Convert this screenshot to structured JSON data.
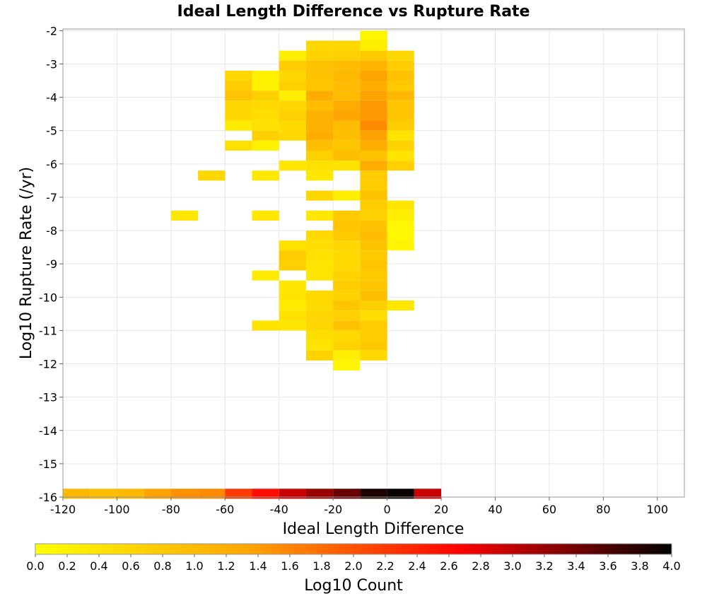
{
  "chart_data": {
    "type": "heatmap",
    "title": "Ideal Length Difference vs Rupture Rate",
    "xlabel": "Ideal Length Difference",
    "ylabel": "Log10 Rupture Rate (/yr)",
    "colorbar_label": "Log10 Count",
    "xlim": [
      -120,
      110
    ],
    "ylim": [
      -16,
      -1.95
    ],
    "x_ticks": [
      "-120",
      "-100",
      "-80",
      "-60",
      "-40",
      "-20",
      "0",
      "20",
      "40",
      "60",
      "80",
      "100"
    ],
    "y_ticks": [
      "-2",
      "-3",
      "-4",
      "-5",
      "-6",
      "-7",
      "-8",
      "-9",
      "-10",
      "-11",
      "-12",
      "-13",
      "-14",
      "-15",
      "-16"
    ],
    "colorbar_ticks": [
      "0.0",
      "0.2",
      "0.4",
      "0.6",
      "0.8",
      "1.0",
      "1.2",
      "1.4",
      "1.6",
      "1.8",
      "2.0",
      "2.2",
      "2.4",
      "2.6",
      "2.8",
      "3.0",
      "3.2",
      "3.4",
      "3.6",
      "3.8",
      "4.0"
    ],
    "colorbar_range": [
      0,
      4
    ],
    "grid": true,
    "colorscale": [
      "#ffff00",
      "#ffa500",
      "#ff0000",
      "#000000"
    ],
    "cell_width": 10,
    "cell_height": 0.3,
    "cells": [
      [
        -10,
        -2.15,
        0.15
      ],
      [
        -20,
        -2.45,
        0.6
      ],
      [
        -30,
        -2.45,
        0.6
      ],
      [
        -10,
        -2.45,
        0.25
      ],
      [
        -40,
        -2.75,
        0.25
      ],
      [
        -30,
        -2.75,
        0.65
      ],
      [
        -20,
        -2.75,
        0.7
      ],
      [
        -10,
        -2.75,
        0.8
      ],
      [
        0,
        -2.75,
        0.6
      ],
      [
        -40,
        -3.05,
        0.75
      ],
      [
        -30,
        -3.05,
        0.9
      ],
      [
        -20,
        -3.05,
        1.0
      ],
      [
        -10,
        -3.05,
        1.1
      ],
      [
        0,
        -3.05,
        0.75
      ],
      [
        -60,
        -3.35,
        0.6
      ],
      [
        -50,
        -3.35,
        0.2
      ],
      [
        -40,
        -3.35,
        0.6
      ],
      [
        -30,
        -3.35,
        0.9
      ],
      [
        -20,
        -3.35,
        1.05
      ],
      [
        -10,
        -3.35,
        1.35
      ],
      [
        0,
        -3.35,
        0.9
      ],
      [
        -60,
        -3.65,
        0.75
      ],
      [
        -50,
        -3.65,
        0.2
      ],
      [
        -40,
        -3.65,
        0.7
      ],
      [
        -30,
        -3.65,
        0.85
      ],
      [
        -20,
        -3.65,
        1.0
      ],
      [
        -10,
        -3.65,
        1.2
      ],
      [
        0,
        -3.65,
        0.8
      ],
      [
        -60,
        -3.95,
        0.9
      ],
      [
        -50,
        -3.95,
        0.7
      ],
      [
        -40,
        -3.95,
        0.25
      ],
      [
        -30,
        -3.95,
        1.2
      ],
      [
        -20,
        -3.95,
        1.0
      ],
      [
        -10,
        -3.95,
        1.35
      ],
      [
        0,
        -3.95,
        1.05
      ],
      [
        -60,
        -4.25,
        0.6
      ],
      [
        -50,
        -4.25,
        0.55
      ],
      [
        -40,
        -4.25,
        0.6
      ],
      [
        -30,
        -4.25,
        1.0
      ],
      [
        -20,
        -4.25,
        1.25
      ],
      [
        -10,
        -4.25,
        1.45
      ],
      [
        0,
        -4.25,
        0.85
      ],
      [
        -60,
        -4.55,
        0.6
      ],
      [
        -50,
        -4.55,
        0.5
      ],
      [
        -40,
        -4.55,
        0.7
      ],
      [
        -30,
        -4.55,
        1.15
      ],
      [
        -20,
        -4.55,
        1.3
      ],
      [
        -10,
        -4.55,
        1.45
      ],
      [
        0,
        -4.55,
        0.85
      ],
      [
        -60,
        -4.85,
        0.3
      ],
      [
        -50,
        -4.85,
        0.45
      ],
      [
        -40,
        -4.85,
        0.55
      ],
      [
        -30,
        -4.85,
        1.15
      ],
      [
        -20,
        -4.85,
        1.0
      ],
      [
        -10,
        -4.85,
        1.55
      ],
      [
        0,
        -4.85,
        0.75
      ],
      [
        -50,
        -5.15,
        0.7
      ],
      [
        -40,
        -5.15,
        0.55
      ],
      [
        -30,
        -5.15,
        1.2
      ],
      [
        -20,
        -5.15,
        0.95
      ],
      [
        -10,
        -5.15,
        1.35
      ],
      [
        0,
        -5.15,
        0.4
      ],
      [
        -60,
        -5.45,
        0.45
      ],
      [
        -50,
        -5.45,
        0.2
      ],
      [
        -30,
        -5.45,
        0.95
      ],
      [
        -20,
        -5.45,
        0.85
      ],
      [
        -10,
        -5.45,
        1.2
      ],
      [
        0,
        -5.45,
        0.65
      ],
      [
        -30,
        -5.75,
        0.7
      ],
      [
        -20,
        -5.75,
        0.95
      ],
      [
        -10,
        -5.75,
        0.9
      ],
      [
        0,
        -5.75,
        0.4
      ],
      [
        -40,
        -6.05,
        0.35
      ],
      [
        -30,
        -6.05,
        0.45
      ],
      [
        -20,
        -6.05,
        0.45
      ],
      [
        -10,
        -6.05,
        1.2
      ],
      [
        0,
        -6.05,
        0.7
      ],
      [
        -70,
        -6.35,
        0.6
      ],
      [
        -50,
        -6.35,
        0.35
      ],
      [
        -30,
        -6.35,
        0.35
      ],
      [
        -10,
        -6.35,
        0.75
      ],
      [
        -10,
        -6.65,
        0.75
      ],
      [
        -30,
        -6.95,
        0.6
      ],
      [
        -20,
        -6.95,
        0.25
      ],
      [
        -10,
        -6.95,
        0.9
      ],
      [
        -10,
        -7.25,
        0.75
      ],
      [
        0,
        -7.25,
        0.35
      ],
      [
        -80,
        -7.55,
        0.35
      ],
      [
        -50,
        -7.55,
        0.35
      ],
      [
        -30,
        -7.55,
        0.35
      ],
      [
        -20,
        -7.55,
        0.8
      ],
      [
        -10,
        -7.55,
        0.7
      ],
      [
        0,
        -7.55,
        0.25
      ],
      [
        -20,
        -7.85,
        0.85
      ],
      [
        -10,
        -7.85,
        0.9
      ],
      [
        0,
        -7.85,
        0.1
      ],
      [
        -30,
        -8.15,
        0.55
      ],
      [
        -20,
        -8.15,
        0.8
      ],
      [
        -10,
        -8.15,
        1.0
      ],
      [
        0,
        -8.15,
        0.1
      ],
      [
        -40,
        -8.45,
        0.45
      ],
      [
        -30,
        -8.45,
        0.5
      ],
      [
        -20,
        -8.45,
        0.6
      ],
      [
        -10,
        -8.45,
        0.9
      ],
      [
        0,
        -8.45,
        0.15
      ],
      [
        -40,
        -8.75,
        0.75
      ],
      [
        -30,
        -8.75,
        0.45
      ],
      [
        -20,
        -8.75,
        0.55
      ],
      [
        -10,
        -8.75,
        0.8
      ],
      [
        -40,
        -9.05,
        0.7
      ],
      [
        -30,
        -9.05,
        0.4
      ],
      [
        -20,
        -9.05,
        0.55
      ],
      [
        -10,
        -9.05,
        0.85
      ],
      [
        -50,
        -9.35,
        0.3
      ],
      [
        -30,
        -9.35,
        0.4
      ],
      [
        -20,
        -9.35,
        0.65
      ],
      [
        -10,
        -9.35,
        0.8
      ],
      [
        -40,
        -9.65,
        0.35
      ],
      [
        -20,
        -9.65,
        0.75
      ],
      [
        -10,
        -9.65,
        0.85
      ],
      [
        -40,
        -9.95,
        0.4
      ],
      [
        -30,
        -9.95,
        0.55
      ],
      [
        -20,
        -9.95,
        0.65
      ],
      [
        -10,
        -9.95,
        0.95
      ],
      [
        -40,
        -10.25,
        0.3
      ],
      [
        -30,
        -10.25,
        0.55
      ],
      [
        -20,
        -10.25,
        0.85
      ],
      [
        -10,
        -10.25,
        0.7
      ],
      [
        0,
        -10.25,
        0.35
      ],
      [
        -40,
        -10.55,
        0.45
      ],
      [
        -30,
        -10.55,
        0.6
      ],
      [
        -20,
        -10.55,
        0.7
      ],
      [
        -10,
        -10.55,
        0.5
      ],
      [
        -50,
        -10.85,
        0.4
      ],
      [
        -40,
        -10.85,
        0.35
      ],
      [
        -30,
        -10.85,
        0.6
      ],
      [
        -20,
        -10.85,
        0.9
      ],
      [
        -10,
        -10.85,
        0.75
      ],
      [
        -30,
        -11.15,
        0.5
      ],
      [
        -20,
        -11.15,
        0.55
      ],
      [
        -10,
        -11.15,
        0.75
      ],
      [
        -30,
        -11.45,
        0.4
      ],
      [
        -20,
        -11.45,
        0.65
      ],
      [
        -10,
        -11.45,
        0.8
      ],
      [
        -30,
        -11.75,
        0.65
      ],
      [
        -20,
        -11.75,
        0.25
      ],
      [
        -10,
        -11.75,
        0.55
      ],
      [
        -20,
        -12.05,
        0.15
      ]
    ],
    "bottom_row": {
      "y": -15.9,
      "cells": [
        [
          -120,
          1.05
        ],
        [
          -110,
          0.95
        ],
        [
          -100,
          1.05
        ],
        [
          -90,
          1.35
        ],
        [
          -80,
          1.5
        ],
        [
          -70,
          1.55
        ],
        [
          -60,
          2.2
        ],
        [
          -50,
          2.55
        ],
        [
          -40,
          2.95
        ],
        [
          -30,
          3.2
        ],
        [
          -20,
          3.45
        ],
        [
          -10,
          3.85
        ],
        [
          0,
          3.95
        ],
        [
          10,
          2.95
        ]
      ]
    }
  }
}
